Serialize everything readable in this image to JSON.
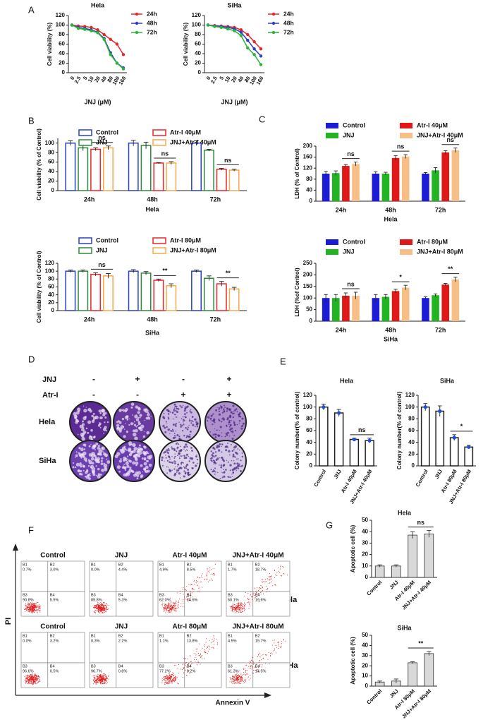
{
  "panel_labels": [
    "A",
    "B",
    "C",
    "D",
    "E",
    "F",
    "G"
  ],
  "chart_data": [
    {
      "type": "line",
      "title": "Hela",
      "x_label": "JNJ (μM)",
      "y_label": "Cell viability (%)",
      "categories": [
        "0",
        "2.5",
        "5",
        "10",
        "20",
        "40",
        "80",
        "100",
        "160"
      ],
      "series": [
        {
          "name": "24h",
          "color": "#e8262a",
          "values": [
            100,
            98,
            97,
            95,
            90,
            80,
            70,
            60,
            38
          ]
        },
        {
          "name": "48h",
          "color": "#2a3fc4",
          "values": [
            100,
            95,
            93,
            90,
            85,
            72,
            42,
            20,
            10
          ]
        },
        {
          "name": "72h",
          "color": "#28b43c",
          "values": [
            100,
            93,
            91,
            88,
            84,
            70,
            38,
            20,
            8
          ]
        }
      ],
      "ylim": [
        0,
        120
      ],
      "yticks": [
        0,
        20,
        40,
        60,
        80,
        100,
        120
      ]
    },
    {
      "type": "line",
      "title": "SiHa",
      "x_label": "JNJ (μM)",
      "y_label": "Cell viability (%)",
      "categories": [
        "0",
        "2.5",
        "5",
        "10",
        "20",
        "40",
        "80",
        "100",
        "160"
      ],
      "series": [
        {
          "name": "24h",
          "color": "#e8262a",
          "values": [
            100,
            99,
            98,
            97,
            95,
            90,
            80,
            65,
            50
          ]
        },
        {
          "name": "48h",
          "color": "#2a3fc4",
          "values": [
            100,
            98,
            97,
            95,
            92,
            85,
            68,
            50,
            35
          ]
        },
        {
          "name": "72h",
          "color": "#28b43c",
          "values": [
            100,
            97,
            95,
            92,
            88,
            78,
            52,
            38,
            17
          ]
        }
      ],
      "ylim": [
        0,
        120
      ],
      "yticks": [
        0,
        20,
        40,
        60,
        80,
        100,
        120
      ]
    },
    {
      "type": "bar",
      "hollow": true,
      "x_label": "Hela",
      "y_label": "Cell viability (% of Control)",
      "categories": [
        "24h",
        "48h",
        "72h"
      ],
      "series": [
        {
          "name": "Control",
          "color": "#2a3fc4",
          "values": [
            100,
            100,
            100
          ],
          "errors": [
            5,
            6,
            5
          ]
        },
        {
          "name": "JNJ",
          "color": "#2e8b3c",
          "values": [
            90,
            95,
            85
          ],
          "errors": [
            6,
            7,
            2
          ]
        },
        {
          "name": "Atr-I 40μM",
          "color": "#e8262a",
          "values": [
            87,
            58,
            45
          ],
          "errors": [
            3,
            1,
            2
          ]
        },
        {
          "name": "JNJ+Atr-I 40μM",
          "color": "#f5a94e",
          "values": [
            90,
            58,
            43
          ],
          "errors": [
            4,
            3,
            2
          ]
        }
      ],
      "significance": [
        "ns",
        "ns",
        "ns"
      ],
      "ylim": [
        0,
        110
      ],
      "yticks": [
        0,
        20,
        40,
        60,
        80,
        100
      ]
    },
    {
      "type": "bar",
      "hollow": true,
      "x_label": "SiHa",
      "y_label": "Cell viability (% of Control)",
      "categories": [
        "24h",
        "48h",
        "72h"
      ],
      "series": [
        {
          "name": "Control",
          "color": "#2a3fc4",
          "values": [
            100,
            100,
            100
          ],
          "errors": [
            3,
            4,
            3
          ]
        },
        {
          "name": "JNJ",
          "color": "#2e8b3c",
          "values": [
            100,
            95,
            82
          ],
          "errors": [
            3,
            4,
            6
          ]
        },
        {
          "name": "Atr-I 80μM",
          "color": "#e8262a",
          "values": [
            92,
            77,
            68
          ],
          "errors": [
            4,
            3,
            6
          ]
        },
        {
          "name": "JNJ+Atr-I 80μM",
          "color": "#f5a94e",
          "values": [
            88,
            63,
            55
          ],
          "errors": [
            6,
            5,
            4
          ]
        }
      ],
      "significance": [
        "ns",
        "**",
        "**"
      ],
      "ylim": [
        0,
        120
      ],
      "yticks": [
        0,
        20,
        40,
        60,
        80,
        100,
        120
      ]
    },
    {
      "type": "bar",
      "hollow": false,
      "x_label": "Hela",
      "y_label": "LDH (% of Control)",
      "categories": [
        "24h",
        "48h",
        "72h"
      ],
      "series": [
        {
          "name": "Control",
          "color": "#1c1cd6",
          "values": [
            100,
            100,
            100
          ],
          "errors": [
            8,
            7,
            4
          ]
        },
        {
          "name": "JNJ",
          "color": "#22b422",
          "values": [
            102,
            100,
            112
          ],
          "errors": [
            8,
            5,
            10
          ]
        },
        {
          "name": "Atr-I 40μM",
          "color": "#e01818",
          "values": [
            128,
            157,
            177
          ],
          "errors": [
            5,
            8,
            6
          ]
        },
        {
          "name": "JNJ+Atr-I 40μM",
          "color": "#f7bf86",
          "values": [
            135,
            162,
            185
          ],
          "errors": [
            7,
            7,
            8
          ]
        }
      ],
      "significance": [
        "ns",
        "ns",
        "ns"
      ],
      "ylim": [
        0,
        200
      ],
      "yticks": [
        0,
        40,
        80,
        120,
        160,
        200
      ]
    },
    {
      "type": "bar",
      "hollow": false,
      "x_label": "SiHa",
      "y_label": "LDH (%of Control)",
      "categories": [
        "24h",
        "48h",
        "72h"
      ],
      "series": [
        {
          "name": "Control",
          "color": "#1c1cd6",
          "values": [
            100,
            100,
            100
          ],
          "errors": [
            15,
            15,
            5
          ]
        },
        {
          "name": "JNJ",
          "color": "#22b422",
          "values": [
            100,
            105,
            112
          ],
          "errors": [
            15,
            10,
            6
          ]
        },
        {
          "name": "Atr-I 80μM",
          "color": "#e01818",
          "values": [
            110,
            130,
            158
          ],
          "errors": [
            12,
            8,
            5
          ]
        },
        {
          "name": "JNJ+Atr-I 80μM",
          "color": "#f7bf86",
          "values": [
            110,
            145,
            180
          ],
          "errors": [
            15,
            10,
            10
          ]
        }
      ],
      "significance": [
        "ns",
        "*",
        "**"
      ],
      "ylim": [
        0,
        250
      ],
      "yticks": [
        0,
        50,
        100,
        150,
        200,
        250
      ]
    },
    {
      "type": "bar",
      "hollow": true,
      "color": "#222222",
      "dot_color": "#1f4fd6",
      "title": "Hela",
      "y_label": "Colony number(% of control)",
      "categories": [
        "Control",
        "JNJ",
        "Atr-I 40μM",
        "JNJ+Atr-I 40μM"
      ],
      "values": [
        100,
        90,
        45,
        43
      ],
      "errors": [
        5,
        6,
        2,
        4
      ],
      "significance": "ns",
      "ylim": [
        0,
        120
      ],
      "yticks": [
        0,
        20,
        40,
        60,
        80,
        100,
        120
      ]
    },
    {
      "type": "bar",
      "hollow": true,
      "color": "#222222",
      "dot_color": "#1f4fd6",
      "title": "SiHa",
      "y_label": "Colony number(% of control)",
      "categories": [
        "Control",
        "JNJ",
        "Atr-I 80μM",
        "JNJ+Atr-I 80μM"
      ],
      "values": [
        100,
        93,
        48,
        32
      ],
      "errors": [
        6,
        9,
        5,
        3
      ],
      "significance": "*",
      "ylim": [
        0,
        120
      ],
      "yticks": [
        0,
        20,
        40,
        60,
        80,
        100,
        120
      ]
    },
    {
      "type": "bar",
      "hollow": false,
      "color": "#d9d9d9",
      "title": "Hela",
      "y_label": "Apoptotic cell (%)",
      "categories": [
        "Control",
        "JNJ",
        "Atr-I 40μM",
        "JNJ+Atr-I 40μM"
      ],
      "values": [
        10,
        10,
        37,
        38
      ],
      "errors": [
        1,
        1,
        3,
        3
      ],
      "significance": "ns",
      "ylim": [
        0,
        50
      ],
      "yticks": [
        0,
        10,
        20,
        30,
        40,
        50
      ]
    },
    {
      "type": "bar",
      "hollow": false,
      "color": "#d9d9d9",
      "title": "SiHa",
      "y_label": "Apoptotic cell (%)",
      "categories": [
        "Control",
        "JNJ",
        "Atr-I 80μM",
        "JNJ+Atr-I 80μM"
      ],
      "values": [
        4,
        5,
        23,
        32
      ],
      "errors": [
        1,
        2,
        1,
        2
      ],
      "significance": "**",
      "ylim": [
        0,
        50
      ],
      "yticks": [
        0,
        10,
        20,
        30,
        40,
        50
      ]
    }
  ],
  "colony": {
    "row_headers": [
      "JNJ",
      "Atr-I"
    ],
    "signs": [
      [
        "-",
        "+",
        "-",
        "+"
      ],
      [
        "-",
        "-",
        "+",
        "+"
      ]
    ],
    "cell_lines": [
      "Hela",
      "SiHa"
    ]
  },
  "flow": {
    "y_label": "PI",
    "x_label": "Annexin V",
    "cell_lines": [
      "Hela",
      "SiHa"
    ],
    "panels": [
      {
        "title": "Control",
        "quadrants": [
          {
            "name": "B1",
            "value": "0.7%"
          },
          {
            "name": "B2",
            "value": "3.0%"
          },
          {
            "name": "B3",
            "value": "90.8%"
          },
          {
            "name": "B4",
            "value": "5.5%"
          }
        ]
      },
      {
        "title": "JNJ",
        "quadrants": [
          {
            "name": "B1",
            "value": "0.0%"
          },
          {
            "name": "B2",
            "value": "4.4%"
          },
          {
            "name": "B3",
            "value": "89.8%"
          },
          {
            "name": "B4",
            "value": "5.3%"
          }
        ]
      },
      {
        "title": "Atr-I 40μM",
        "quadrants": [
          {
            "name": "B1",
            "value": "4.9%"
          },
          {
            "name": "B2",
            "value": "8.5%"
          },
          {
            "name": "B3",
            "value": "62.0%"
          },
          {
            "name": "B4",
            "value": "24.6%"
          }
        ]
      },
      {
        "title": "JNJ+Atr-I 40μM",
        "quadrants": [
          {
            "name": "B1",
            "value": "1.7%"
          },
          {
            "name": "B2",
            "value": "18.7%"
          },
          {
            "name": "B3",
            "value": "60.1%"
          },
          {
            "name": "B4",
            "value": "19.6%"
          }
        ]
      },
      {
        "title": "Control",
        "quadrants": [
          {
            "name": "B1",
            "value": "0.0%"
          },
          {
            "name": "B2",
            "value": "3.2%"
          },
          {
            "name": "B3",
            "value": "96.6%"
          },
          {
            "name": "B4",
            "value": "0.5%"
          }
        ]
      },
      {
        "title": "JNJ",
        "quadrants": [
          {
            "name": "B1",
            "value": "0.3%"
          },
          {
            "name": "B2",
            "value": "2.2%"
          },
          {
            "name": "B3",
            "value": "96.7%"
          },
          {
            "name": "B4",
            "value": "0.8%"
          }
        ]
      },
      {
        "title": "Atr-I 80μM",
        "quadrants": [
          {
            "name": "B1",
            "value": "1.1%"
          },
          {
            "name": "B2",
            "value": "13.8%"
          },
          {
            "name": "B3",
            "value": "77.2%"
          },
          {
            "name": "B4",
            "value": "8.2%"
          }
        ]
      },
      {
        "title": "JNJ+Atr-I 80uM",
        "quadrants": [
          {
            "name": "B1",
            "value": "4.5%"
          },
          {
            "name": "B2",
            "value": "19.7%"
          },
          {
            "name": "B3",
            "value": "61.3%"
          },
          {
            "name": "B4",
            "value": "14.5%"
          }
        ]
      }
    ]
  }
}
